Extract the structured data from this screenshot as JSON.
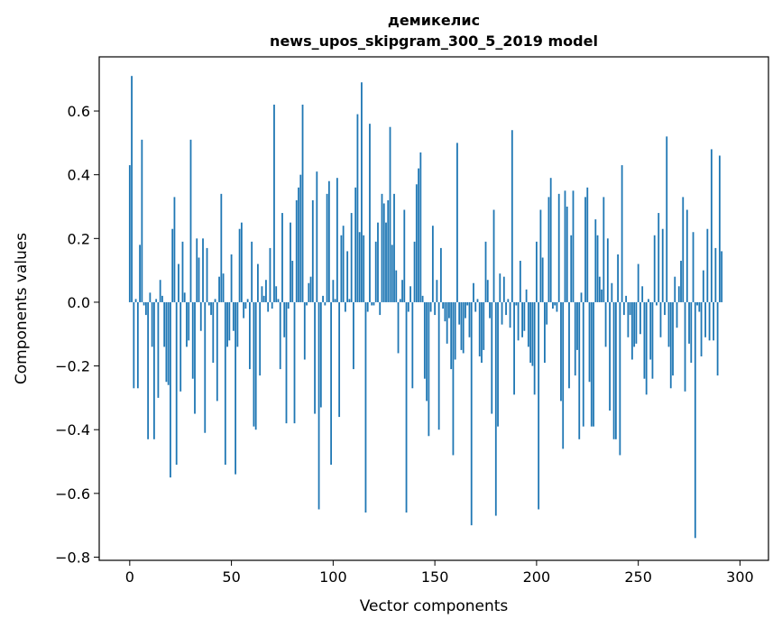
{
  "chart_data": {
    "type": "bar",
    "title_line1": "демикелис",
    "title_line2": "news_upos_skipgram_300_5_2019 model",
    "xlabel": "Vector components",
    "ylabel": "Components values",
    "xlim": [
      -15,
      314
    ],
    "ylim": [
      -0.81,
      0.77
    ],
    "xticks": [
      0,
      50,
      100,
      150,
      200,
      250,
      300
    ],
    "yticks": [
      -0.8,
      -0.6,
      -0.4,
      -0.2,
      0.0,
      0.2,
      0.4,
      0.6
    ],
    "ytick_labels": [
      "−0.8",
      "−0.6",
      "−0.4",
      "−0.2",
      "0.0",
      "0.2",
      "0.4",
      "0.6"
    ],
    "bar_color": "#1f77b4",
    "grid": false,
    "values": [
      0.43,
      0.71,
      -0.27,
      0.01,
      -0.27,
      0.18,
      0.51,
      -0.01,
      -0.04,
      -0.43,
      0.03,
      -0.14,
      -0.43,
      0.01,
      -0.3,
      0.07,
      0.02,
      -0.14,
      -0.25,
      -0.26,
      -0.55,
      0.23,
      0.33,
      -0.51,
      0.12,
      -0.28,
      0.19,
      0.03,
      -0.14,
      -0.12,
      0.51,
      -0.24,
      -0.35,
      0.2,
      0.14,
      -0.09,
      0.2,
      -0.41,
      0.17,
      -0.01,
      -0.04,
      -0.19,
      0.01,
      -0.31,
      0.08,
      0.34,
      0.09,
      -0.51,
      -0.14,
      -0.12,
      0.15,
      -0.09,
      -0.54,
      -0.14,
      0.23,
      0.25,
      -0.05,
      -0.02,
      0.01,
      -0.21,
      0.19,
      -0.39,
      -0.4,
      0.12,
      -0.23,
      0.05,
      0.02,
      0.07,
      -0.03,
      0.17,
      -0.02,
      0.62,
      0.05,
      0.01,
      -0.21,
      0.28,
      -0.11,
      -0.38,
      -0.02,
      0.25,
      0.13,
      -0.38,
      0.32,
      0.36,
      0.4,
      0.62,
      -0.18,
      -0.01,
      0.06,
      0.08,
      0.32,
      -0.35,
      0.41,
      -0.65,
      -0.33,
      0.02,
      -0.01,
      0.34,
      0.38,
      -0.51,
      0.07,
      0.01,
      0.39,
      -0.36,
      0.21,
      0.24,
      -0.03,
      0.16,
      0.01,
      0.28,
      -0.21,
      0.36,
      0.59,
      0.22,
      0.69,
      0.21,
      -0.66,
      -0.03,
      0.56,
      -0.01,
      -0.01,
      0.19,
      0.25,
      -0.04,
      0.34,
      0.31,
      0.25,
      0.32,
      0.55,
      0.18,
      0.34,
      0.1,
      -0.16,
      0.01,
      0.07,
      0.29,
      -0.66,
      -0.03,
      0.05,
      -0.27,
      0.19,
      0.37,
      0.42,
      0.47,
      0.02,
      -0.24,
      -0.31,
      -0.42,
      -0.03,
      0.24,
      -0.04,
      0.07,
      -0.4,
      0.17,
      -0.02,
      -0.06,
      -0.13,
      -0.05,
      -0.21,
      -0.48,
      -0.18,
      0.5,
      -0.07,
      -0.15,
      -0.16,
      -0.05,
      -0.01,
      -0.11,
      -0.7,
      0.06,
      -0.03,
      0.01,
      -0.17,
      -0.19,
      -0.15,
      0.19,
      0.07,
      -0.05,
      -0.35,
      0.29,
      -0.67,
      -0.39,
      0.09,
      -0.07,
      0.08,
      -0.04,
      0.01,
      -0.08,
      0.54,
      -0.29,
      -0.01,
      -0.12,
      0.13,
      -0.11,
      -0.09,
      0.04,
      -0.14,
      -0.19,
      -0.2,
      -0.29,
      0.19,
      -0.65,
      0.29,
      0.14,
      -0.19,
      -0.07,
      0.33,
      0.39,
      -0.02,
      -0.01,
      -0.03,
      0.34,
      -0.31,
      -0.46,
      0.35,
      0.3,
      -0.27,
      0.21,
      0.35,
      -0.23,
      -0.15,
      -0.43,
      0.03,
      -0.39,
      0.33,
      0.36,
      -0.25,
      -0.39,
      -0.39,
      0.26,
      0.21,
      0.08,
      0.04,
      0.33,
      -0.14,
      0.2,
      -0.34,
      0.06,
      -0.43,
      -0.43,
      0.15,
      -0.48,
      0.43,
      -0.04,
      0.02,
      -0.11,
      -0.04,
      -0.18,
      -0.14,
      -0.13,
      0.12,
      -0.1,
      0.05,
      -0.24,
      -0.29,
      0.01,
      -0.18,
      -0.24,
      0.21,
      -0.01,
      0.28,
      -0.11,
      0.23,
      -0.04,
      0.52,
      -0.14,
      -0.27,
      -0.23,
      0.08,
      -0.08,
      0.05,
      0.13,
      0.33,
      -0.28,
      0.29,
      -0.13,
      -0.19,
      0.22,
      -0.74,
      -0.01,
      -0.03,
      -0.17,
      0.1,
      -0.11,
      0.23,
      -0.12,
      0.48,
      -0.12,
      0.17,
      -0.23,
      0.46,
      0.16
    ]
  }
}
